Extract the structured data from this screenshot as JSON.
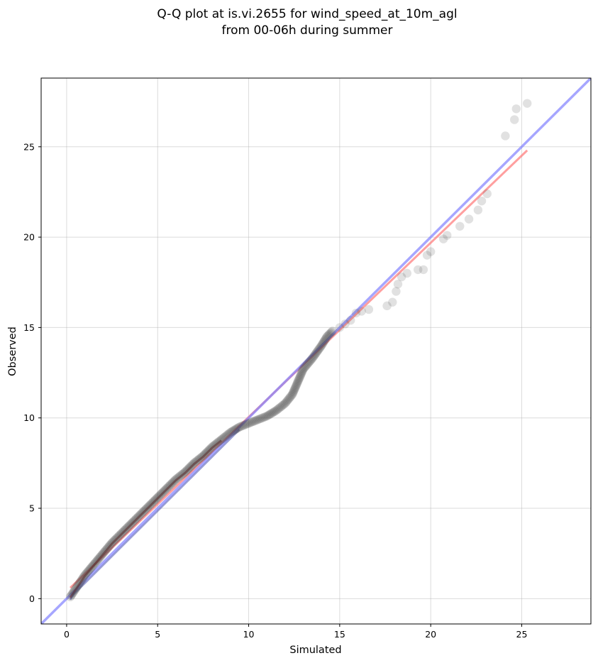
{
  "chart_data": {
    "type": "scatter",
    "title": [
      "Q-Q plot at is.vi.2655 for wind_speed_at_10m_agl",
      "from 00-06h during summer"
    ],
    "xlabel": "Simulated",
    "ylabel": "Observed",
    "xlim": [
      -1.4,
      28.8
    ],
    "ylim": [
      -1.4,
      28.8
    ],
    "xticks": [
      0,
      5,
      10,
      15,
      20,
      25
    ],
    "yticks": [
      0,
      5,
      10,
      15,
      20,
      25
    ],
    "grid": true,
    "colors": {
      "points": "#444444",
      "fit_line": "#ff7f7f",
      "identity_line": "#8080ff",
      "dense_red": "#8b0000",
      "dense_blue": "#1f2aa0"
    },
    "quantile_curve": [
      [
        0.2,
        0.1
      ],
      [
        0.4,
        0.4
      ],
      [
        0.6,
        0.7
      ],
      [
        0.8,
        1.0
      ],
      [
        1.0,
        1.3
      ],
      [
        1.5,
        1.9
      ],
      [
        2.0,
        2.5
      ],
      [
        2.5,
        3.1
      ],
      [
        3.0,
        3.6
      ],
      [
        3.5,
        4.1
      ],
      [
        4.0,
        4.6
      ],
      [
        4.5,
        5.1
      ],
      [
        5.0,
        5.6
      ],
      [
        5.5,
        6.1
      ],
      [
        6.0,
        6.6
      ],
      [
        6.5,
        7.0
      ],
      [
        7.0,
        7.5
      ],
      [
        7.5,
        7.9
      ],
      [
        8.0,
        8.4
      ],
      [
        8.5,
        8.8
      ],
      [
        9.0,
        9.2
      ],
      [
        9.5,
        9.5
      ],
      [
        10.0,
        9.7
      ],
      [
        10.5,
        9.9
      ],
      [
        11.0,
        10.1
      ],
      [
        11.5,
        10.4
      ],
      [
        12.0,
        10.8
      ],
      [
        12.4,
        11.3
      ],
      [
        12.7,
        12.0
      ],
      [
        13.0,
        12.7
      ],
      [
        13.5,
        13.3
      ],
      [
        14.0,
        14.0
      ],
      [
        14.3,
        14.5
      ],
      [
        14.6,
        14.8
      ]
    ],
    "tail_points": [
      [
        15.0,
        15.0
      ],
      [
        15.3,
        15.2
      ],
      [
        15.6,
        15.4
      ],
      [
        15.9,
        15.8
      ],
      [
        16.2,
        15.9
      ],
      [
        16.6,
        16.0
      ],
      [
        17.6,
        16.2
      ],
      [
        17.9,
        16.4
      ],
      [
        18.1,
        17.0
      ],
      [
        18.2,
        17.4
      ],
      [
        18.4,
        17.8
      ],
      [
        18.7,
        18.0
      ],
      [
        19.3,
        18.2
      ],
      [
        19.6,
        18.2
      ],
      [
        19.8,
        19.0
      ],
      [
        20.0,
        19.2
      ],
      [
        20.7,
        19.9
      ],
      [
        20.9,
        20.1
      ],
      [
        21.6,
        20.6
      ],
      [
        22.1,
        21.0
      ],
      [
        22.6,
        21.5
      ],
      [
        22.8,
        22.0
      ],
      [
        23.1,
        22.4
      ],
      [
        24.1,
        25.6
      ],
      [
        24.6,
        26.5
      ],
      [
        24.7,
        27.1
      ],
      [
        25.3,
        27.4
      ]
    ],
    "fit_line": {
      "x": [
        0.2,
        25.3
      ],
      "y": [
        0.6,
        24.8
      ]
    },
    "identity_line": {
      "x": [
        -1.4,
        28.8
      ],
      "y": [
        -1.4,
        28.8
      ]
    }
  }
}
